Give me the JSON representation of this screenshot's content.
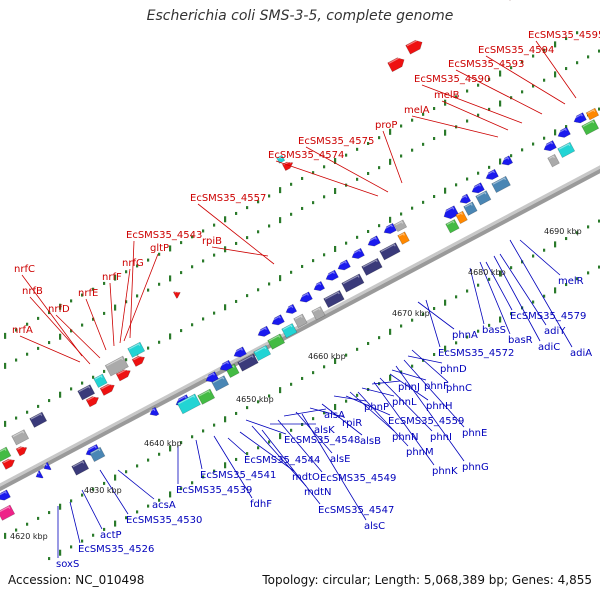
{
  "title": "Escherichia coli SMS-3-5, complete genome",
  "footer": {
    "accession": "Accession: NC_010498",
    "summary": "Topology: circular; Length: 5,068,389 bp; Genes: 4,855"
  },
  "colors": {
    "forward_label": "#cc0000",
    "reverse_label": "#0000bb",
    "backbone": "#9a9a9a",
    "tick": "#2a7a2a",
    "gene_red": "#ee1111",
    "gene_blue": "#1a1aee",
    "gene_cyan": "#22d4d4",
    "gene_navy": "#3a3a7a",
    "gene_steel": "#4a86b4",
    "gene_green": "#44bb44",
    "gene_orange": "#ff8800",
    "gene_magenta": "#ee2288",
    "gene_grey": "#aaaaaa"
  },
  "scale_labels": [
    "4620 kbp",
    "4630 kbp",
    "4640 kbp",
    "4650 kbp",
    "4660 kbp",
    "4670 kbp",
    "4680 kbp",
    "4690 kbp"
  ],
  "forward_genes": [
    {
      "label": "nrfA"
    },
    {
      "label": "nrfB"
    },
    {
      "label": "nrfC"
    },
    {
      "label": "nrfD"
    },
    {
      "label": "nrfE"
    },
    {
      "label": "nrfF"
    },
    {
      "label": "nrfG"
    },
    {
      "label": "gltP"
    },
    {
      "label": "EcSMS35_4543"
    },
    {
      "label": "rpiB"
    },
    {
      "label": "EcSMS35_4557"
    },
    {
      "label": "EcSMS35_4574"
    },
    {
      "label": "EcSMS35_4575"
    },
    {
      "label": "proP"
    },
    {
      "label": "melA"
    },
    {
      "label": "melB"
    },
    {
      "label": "EcSMS35_4590"
    },
    {
      "label": "EcSMS35_4593"
    },
    {
      "label": "EcSMS35_4594"
    },
    {
      "label": "EcSMS35_4595"
    }
  ],
  "reverse_genes": [
    {
      "label": "soxS"
    },
    {
      "label": "EcSMS35_4526"
    },
    {
      "label": "actP"
    },
    {
      "label": "EcSMS35_4530"
    },
    {
      "label": "acsA"
    },
    {
      "label": "EcSMS35_4539"
    },
    {
      "label": "EcSMS35_4541"
    },
    {
      "label": "fdhF"
    },
    {
      "label": "mdtO"
    },
    {
      "label": "EcSMS35_4544"
    },
    {
      "label": "mdtN"
    },
    {
      "label": "alsK"
    },
    {
      "label": "EcSMS35_4547"
    },
    {
      "label": "EcSMS35_4548"
    },
    {
      "label": "alsA"
    },
    {
      "label": "alsE"
    },
    {
      "label": "EcSMS35_4549"
    },
    {
      "label": "alsC"
    },
    {
      "label": "rpiR"
    },
    {
      "label": "alsB"
    },
    {
      "label": "phnP"
    },
    {
      "label": "phnN"
    },
    {
      "label": "EcSMS35_4559"
    },
    {
      "label": "phnL"
    },
    {
      "label": "phnM"
    },
    {
      "label": "phnJ"
    },
    {
      "label": "phnK"
    },
    {
      "label": "phnI"
    },
    {
      "label": "phnH"
    },
    {
      "label": "phnF"
    },
    {
      "label": "phnG"
    },
    {
      "label": "phnE"
    },
    {
      "label": "phnD"
    },
    {
      "label": "phnC"
    },
    {
      "label": "phnA"
    },
    {
      "label": "EcSMS35_4572"
    },
    {
      "label": "basS"
    },
    {
      "label": "basR"
    },
    {
      "label": "adiC"
    },
    {
      "label": "EcSMS35_4579"
    },
    {
      "label": "adiY"
    },
    {
      "label": "adiA"
    },
    {
      "label": "melR"
    }
  ]
}
